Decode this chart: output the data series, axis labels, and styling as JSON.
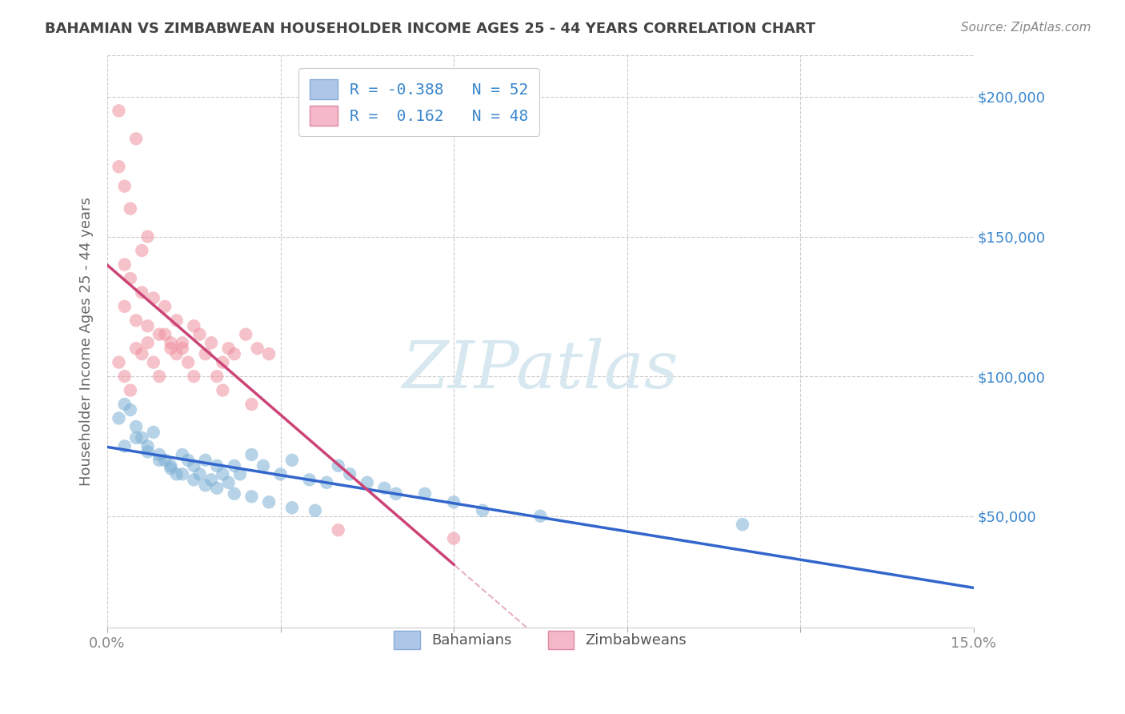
{
  "title": "BAHAMIAN VS ZIMBABWEAN HOUSEHOLDER INCOME AGES 25 - 44 YEARS CORRELATION CHART",
  "source": "Source: ZipAtlas.com",
  "ylabel": "Householder Income Ages 25 - 44 years",
  "xlim": [
    0.0,
    0.15
  ],
  "ylim": [
    10000,
    215000
  ],
  "yticks": [
    50000,
    100000,
    150000,
    200000
  ],
  "ytick_labels": [
    "$50,000",
    "$100,000",
    "$150,000",
    "$200,000"
  ],
  "xticks": [
    0.0,
    0.03,
    0.06,
    0.09,
    0.12,
    0.15
  ],
  "xtick_labels": [
    "0.0%",
    "",
    "",
    "",
    "",
    "15.0%"
  ],
  "bahamian_color": "#7bafd4",
  "bahamian_edge": "none",
  "zimbabwean_color": "#f090a0",
  "zimbabwean_edge": "none",
  "blue_line_color": "#3366cc",
  "pink_line_color": "#cc4477",
  "dashed_line_color": "#e8b0c0",
  "grid_color": "#cccccc",
  "background_color": "#ffffff",
  "title_color": "#444444",
  "source_color": "#888888",
  "ytick_color": "#3a86cc",
  "xtick_color": "#888888",
  "watermark_text": "ZIPatlas",
  "watermark_color": "#d8e8f0",
  "legend_R1": "R = -0.388",
  "legend_N1": "N = 52",
  "legend_R2": "R =  0.162",
  "legend_N2": "N = 48",
  "legend_color1": "#aec6e8",
  "legend_color2": "#f4b8c8",
  "legend_text_color": "#3a86cc",
  "blue_scatter_x": [
    0.002,
    0.003,
    0.004,
    0.005,
    0.006,
    0.007,
    0.008,
    0.009,
    0.01,
    0.011,
    0.012,
    0.013,
    0.014,
    0.015,
    0.016,
    0.017,
    0.018,
    0.019,
    0.02,
    0.021,
    0.022,
    0.023,
    0.025,
    0.027,
    0.03,
    0.032,
    0.035,
    0.038,
    0.04,
    0.042,
    0.045,
    0.048,
    0.05,
    0.055,
    0.06,
    0.065,
    0.003,
    0.005,
    0.007,
    0.009,
    0.011,
    0.013,
    0.015,
    0.017,
    0.019,
    0.022,
    0.025,
    0.028,
    0.032,
    0.036,
    0.075,
    0.11
  ],
  "blue_scatter_y": [
    85000,
    90000,
    88000,
    82000,
    78000,
    75000,
    80000,
    72000,
    70000,
    68000,
    65000,
    72000,
    70000,
    68000,
    65000,
    70000,
    63000,
    68000,
    65000,
    62000,
    68000,
    65000,
    72000,
    68000,
    65000,
    70000,
    63000,
    62000,
    68000,
    65000,
    62000,
    60000,
    58000,
    58000,
    55000,
    52000,
    75000,
    78000,
    73000,
    70000,
    67000,
    65000,
    63000,
    61000,
    60000,
    58000,
    57000,
    55000,
    53000,
    52000,
    50000,
    47000
  ],
  "pink_scatter_x": [
    0.002,
    0.003,
    0.004,
    0.005,
    0.006,
    0.007,
    0.008,
    0.009,
    0.01,
    0.011,
    0.012,
    0.013,
    0.014,
    0.015,
    0.016,
    0.017,
    0.018,
    0.019,
    0.02,
    0.021,
    0.022,
    0.024,
    0.026,
    0.028,
    0.003,
    0.005,
    0.007,
    0.009,
    0.011,
    0.013,
    0.004,
    0.006,
    0.008,
    0.01,
    0.012,
    0.002,
    0.003,
    0.004,
    0.005,
    0.006,
    0.007,
    0.015,
    0.02,
    0.025,
    0.04,
    0.06,
    0.002,
    0.003
  ],
  "pink_scatter_y": [
    105000,
    100000,
    95000,
    110000,
    108000,
    112000,
    105000,
    100000,
    115000,
    110000,
    108000,
    112000,
    105000,
    118000,
    115000,
    108000,
    112000,
    100000,
    105000,
    110000,
    108000,
    115000,
    110000,
    108000,
    125000,
    120000,
    118000,
    115000,
    112000,
    110000,
    135000,
    130000,
    128000,
    125000,
    120000,
    175000,
    168000,
    160000,
    185000,
    145000,
    150000,
    100000,
    95000,
    90000,
    45000,
    42000,
    195000,
    140000
  ]
}
